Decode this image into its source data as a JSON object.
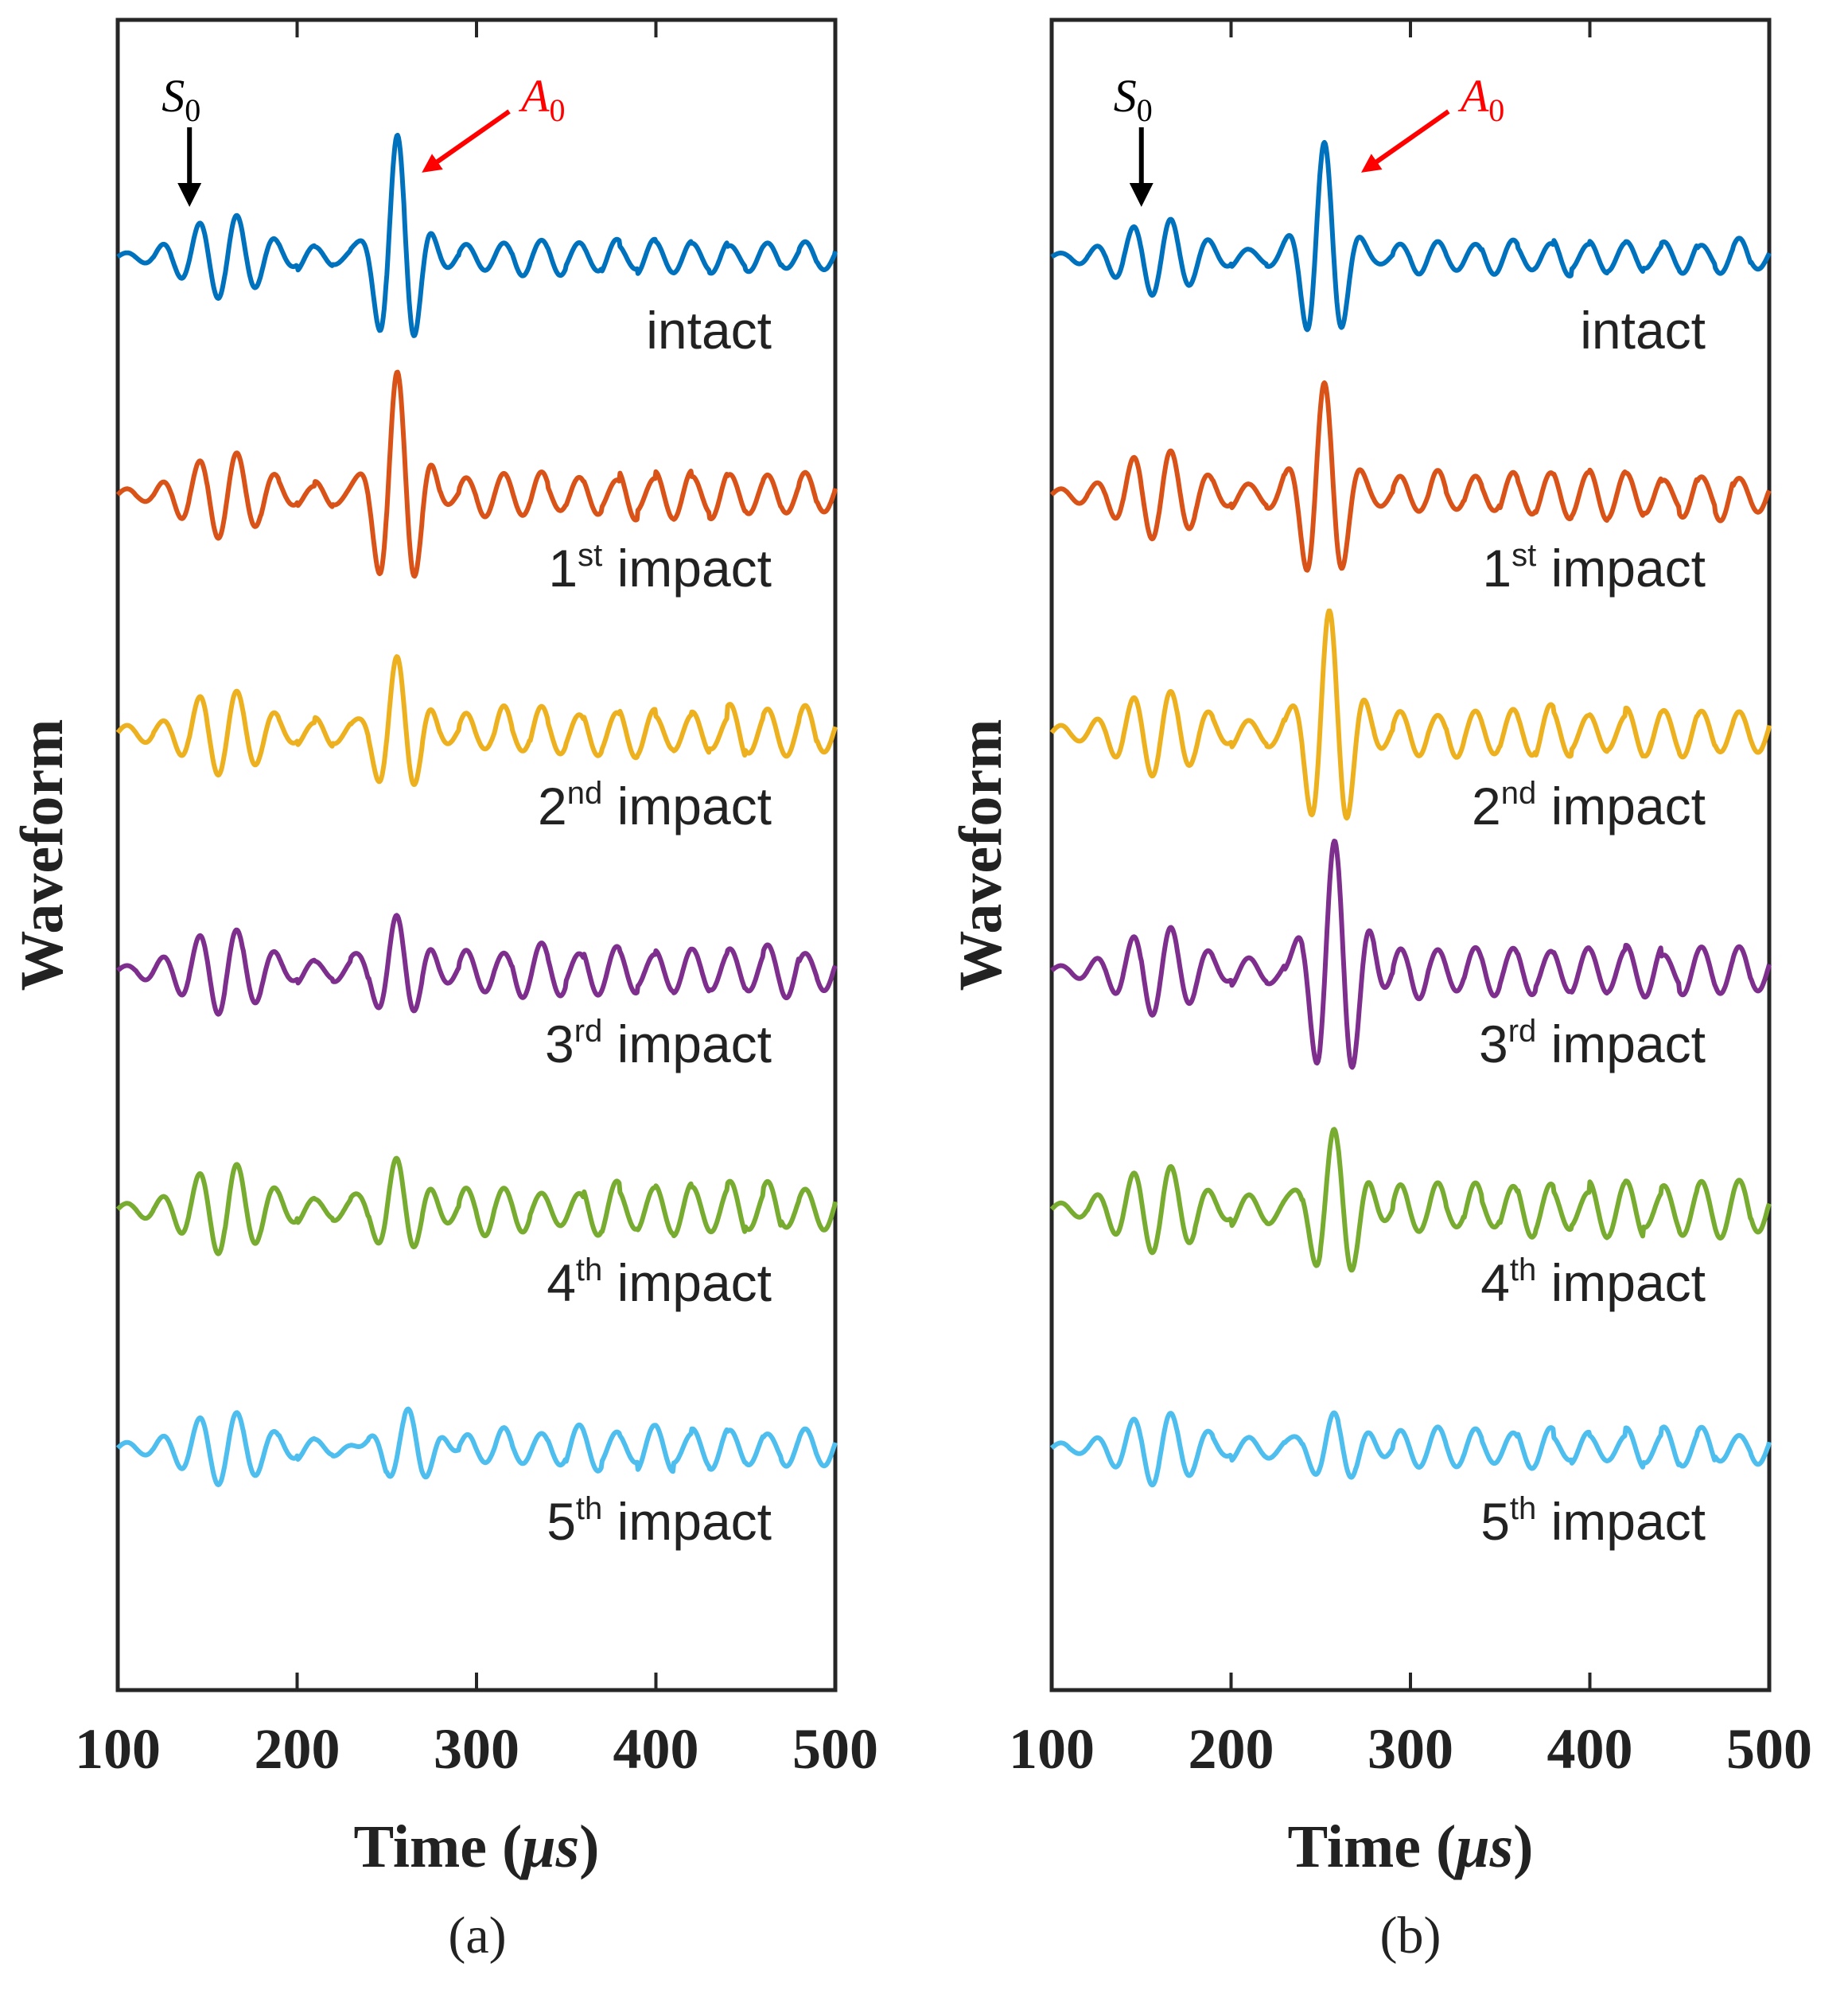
{
  "chart_data": [
    {
      "type": "line",
      "panel": "(a)",
      "xlabel": "Time (μs)",
      "xlabel_parts": {
        "prefix": "Time (",
        "unit": "μs",
        "suffix": ")"
      },
      "ylabel": "Waveform",
      "xlim": [
        100,
        500
      ],
      "xticks": [
        100,
        200,
        300,
        400,
        500
      ],
      "grid": false,
      "annotations": [
        {
          "text": "S",
          "sub": "0",
          "x": 140,
          "color": "#000000"
        },
        {
          "text": "A",
          "sub": "0",
          "x": 265,
          "color": "#ff0000"
        }
      ],
      "series": [
        {
          "name": "intact",
          "ord": "",
          "suffix": "intact",
          "color": "#0072bd",
          "baseline": 0,
          "s0_amp": 0.33,
          "a0_amp": 1.0,
          "a0_center": 256,
          "a0_width": 14,
          "noise_amp": 0.17
        },
        {
          "name": "1st impact",
          "ord": "1",
          "sup": "st",
          "suffix": " impact",
          "color": "#d95319",
          "baseline": 1,
          "s0_amp": 0.33,
          "a0_amp": 1.0,
          "a0_center": 256,
          "a0_width": 15,
          "noise_amp": 0.22
        },
        {
          "name": "2nd impact",
          "ord": "2",
          "sup": "nd",
          "suffix": " impact",
          "color": "#edb120",
          "baseline": 2,
          "s0_amp": 0.33,
          "a0_amp": 0.6,
          "a0_center": 256,
          "a0_width": 15,
          "noise_amp": 0.24
        },
        {
          "name": "3rd impact",
          "ord": "3",
          "sup": "rd",
          "suffix": " impact",
          "color": "#7e2f8e",
          "baseline": 3,
          "s0_amp": 0.33,
          "a0_amp": 0.42,
          "a0_center": 256,
          "a0_width": 16,
          "noise_amp": 0.24
        },
        {
          "name": "4th impact",
          "ord": "4",
          "sup": "th",
          "suffix": " impact",
          "color": "#77ac30",
          "baseline": 4,
          "s0_amp": 0.35,
          "a0_amp": 0.38,
          "a0_center": 256,
          "a0_width": 16,
          "noise_amp": 0.24
        },
        {
          "name": "5th impact",
          "ord": "5",
          "sup": "th",
          "suffix": " impact",
          "color": "#4dbeee",
          "baseline": 5,
          "s0_amp": 0.28,
          "a0_amp": 0.4,
          "a0_center": 262,
          "a0_width": 22,
          "noise_amp": 0.2
        }
      ]
    },
    {
      "type": "line",
      "panel": "(b)",
      "xlabel": "Time (μs)",
      "xlabel_parts": {
        "prefix": "Time (",
        "unit": "μs",
        "suffix": ")"
      },
      "ylabel": "Waveform",
      "xlim": [
        100,
        500
      ],
      "xticks": [
        100,
        200,
        300,
        400,
        500
      ],
      "grid": false,
      "annotations": [
        {
          "text": "S",
          "sub": "0",
          "x": 150,
          "color": "#000000"
        },
        {
          "text": "A",
          "sub": "0",
          "x": 268,
          "color": "#ff0000"
        }
      ],
      "series": [
        {
          "name": "intact",
          "ord": "",
          "suffix": "intact",
          "color": "#0072bd",
          "baseline": 0,
          "s0_amp": 0.3,
          "a0_amp": 0.9,
          "a0_center": 252,
          "a0_width": 14,
          "noise_amp": 0.16
        },
        {
          "name": "1st impact",
          "ord": "1",
          "sup": "st",
          "suffix": " impact",
          "color": "#d95319",
          "baseline": 1,
          "s0_amp": 0.35,
          "a0_amp": 0.85,
          "a0_center": 252,
          "a0_width": 15,
          "noise_amp": 0.22
        },
        {
          "name": "2nd impact",
          "ord": "2",
          "sup": "nd",
          "suffix": " impact",
          "color": "#edb120",
          "baseline": 2,
          "s0_amp": 0.33,
          "a0_amp": 0.95,
          "a0_center": 255,
          "a0_width": 16,
          "noise_amp": 0.24
        },
        {
          "name": "3rd impact",
          "ord": "3",
          "sup": "rd",
          "suffix": " impact",
          "color": "#7e2f8e",
          "baseline": 3,
          "s0_amp": 0.33,
          "a0_amp": 1.1,
          "a0_center": 258,
          "a0_width": 18,
          "noise_amp": 0.24
        },
        {
          "name": "4th impact",
          "ord": "4",
          "sup": "th",
          "suffix": " impact",
          "color": "#77ac30",
          "baseline": 4,
          "s0_amp": 0.33,
          "a0_amp": 0.68,
          "a0_center": 258,
          "a0_width": 18,
          "noise_amp": 0.26
        },
        {
          "name": "5th impact",
          "ord": "5",
          "sup": "th",
          "suffix": " impact",
          "color": "#4dbeee",
          "baseline": 5,
          "s0_amp": 0.28,
          "a0_amp": 0.3,
          "a0_center": 258,
          "a0_width": 20,
          "noise_amp": 0.18
        }
      ]
    }
  ]
}
